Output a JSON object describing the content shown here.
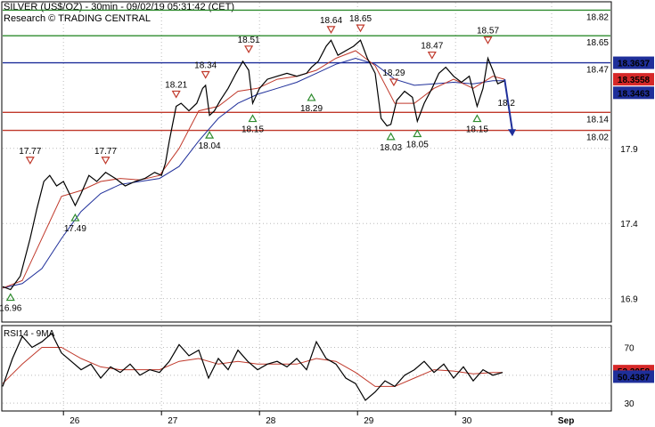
{
  "header": {
    "title": "SILVER (US$/OZ) - 30min - 09/02/19 05:31:42 (CET)",
    "subtitle": "Research © TRADING CENTRAL"
  },
  "chart_data": [
    {
      "type": "line",
      "panel": "price",
      "ylim": [
        16.75,
        18.87
      ],
      "yticks": [
        "17.9",
        "17.4",
        "16.9"
      ],
      "ytick_values": [
        17.9,
        17.4,
        16.9
      ],
      "x_tick_labels": [
        "26",
        "27",
        "28",
        "29",
        "30",
        "Sep"
      ],
      "x_tick_values": [
        0.62,
        1.62,
        2.62,
        3.62,
        4.62,
        5.6
      ],
      "xlim": [
        0,
        6.2
      ],
      "levels": [
        {
          "value": 18.82,
          "label": "18.82",
          "color": "#2e8b2e"
        },
        {
          "value": 18.65,
          "label": "18.65",
          "color": "#2e8b2e"
        },
        {
          "value": 18.47,
          "label": "18.47",
          "color": "#1f2f9a"
        },
        {
          "value": 18.14,
          "label": "18.14",
          "color": "#c0392b"
        },
        {
          "value": 18.02,
          "label": "18.02",
          "color": "#c0392b"
        }
      ],
      "price_badges": [
        {
          "label": "18.3637",
          "value": 18.47,
          "bg": "#1f2f9a",
          "fg": "#ffffff"
        },
        {
          "label": "18.3558",
          "value": 18.36,
          "bg": "#d62828",
          "fg": "#ffffff"
        },
        {
          "label": "18.3463",
          "value": 18.27,
          "bg": "#1f2f9a",
          "fg": "#ffffff"
        }
      ],
      "annotations": [
        {
          "label": "17.77",
          "x": 0.28,
          "y": 17.77,
          "kind": "high"
        },
        {
          "label": "17.77",
          "x": 1.05,
          "y": 17.77,
          "kind": "high"
        },
        {
          "label": "18.21",
          "x": 1.77,
          "y": 18.21,
          "kind": "high"
        },
        {
          "label": "18.34",
          "x": 2.07,
          "y": 18.34,
          "kind": "high"
        },
        {
          "label": "18.51",
          "x": 2.51,
          "y": 18.51,
          "kind": "high"
        },
        {
          "label": "18.64",
          "x": 3.35,
          "y": 18.64,
          "kind": "high"
        },
        {
          "label": "18.65",
          "x": 3.65,
          "y": 18.65,
          "kind": "high"
        },
        {
          "label": "18.29",
          "x": 3.99,
          "y": 18.29,
          "kind": "high"
        },
        {
          "label": "18.47",
          "x": 4.38,
          "y": 18.47,
          "kind": "high"
        },
        {
          "label": "18.57",
          "x": 4.95,
          "y": 18.57,
          "kind": "high"
        },
        {
          "label": "16.96",
          "x": 0.08,
          "y": 16.96,
          "kind": "low"
        },
        {
          "label": "17.49",
          "x": 0.74,
          "y": 17.49,
          "kind": "low"
        },
        {
          "label": "18.04",
          "x": 2.11,
          "y": 18.04,
          "kind": "low"
        },
        {
          "label": "18.15",
          "x": 2.55,
          "y": 18.15,
          "kind": "low"
        },
        {
          "label": "18.29",
          "x": 3.15,
          "y": 18.29,
          "kind": "low"
        },
        {
          "label": "18.03",
          "x": 3.96,
          "y": 18.03,
          "kind": "low"
        },
        {
          "label": "18.05",
          "x": 4.23,
          "y": 18.05,
          "kind": "low"
        },
        {
          "label": "18.15",
          "x": 4.84,
          "y": 18.15,
          "kind": "low"
        },
        {
          "label": "18.2",
          "x": 5.05,
          "y": 18.2,
          "kind": "text"
        }
      ],
      "series": [
        {
          "color": "#000000",
          "x": [
            0,
            0.08,
            0.18,
            0.28,
            0.35,
            0.42,
            0.48,
            0.55,
            0.62,
            0.68,
            0.74,
            0.8,
            0.88,
            0.96,
            1.05,
            1.15,
            1.25,
            1.35,
            1.45,
            1.55,
            1.62,
            1.66,
            1.7,
            1.73,
            1.77,
            1.82,
            1.9,
            1.98,
            2.04,
            2.07,
            2.11,
            2.16,
            2.22,
            2.3,
            2.38,
            2.45,
            2.51,
            2.55,
            2.62,
            2.7,
            2.8,
            2.9,
            3.0,
            3.1,
            3.15,
            3.22,
            3.3,
            3.35,
            3.42,
            3.5,
            3.58,
            3.65,
            3.72,
            3.8,
            3.86,
            3.92,
            3.96,
            4.02,
            4.1,
            4.18,
            4.23,
            4.3,
            4.38,
            4.45,
            4.52,
            4.6,
            4.68,
            4.76,
            4.84,
            4.9,
            4.95,
            5.0,
            5.05,
            5.12
          ],
          "values": [
            16.98,
            16.96,
            17.05,
            17.3,
            17.5,
            17.68,
            17.72,
            17.65,
            17.68,
            17.6,
            17.52,
            17.6,
            17.72,
            17.68,
            17.74,
            17.7,
            17.65,
            17.68,
            17.7,
            17.74,
            17.72,
            17.8,
            17.95,
            18.05,
            18.18,
            18.2,
            18.15,
            18.2,
            18.3,
            18.32,
            18.12,
            18.15,
            18.22,
            18.3,
            18.4,
            18.48,
            18.42,
            18.2,
            18.3,
            18.36,
            18.38,
            18.4,
            18.38,
            18.4,
            18.44,
            18.48,
            18.58,
            18.62,
            18.52,
            18.55,
            18.58,
            18.62,
            18.5,
            18.4,
            18.1,
            18.05,
            18.06,
            18.22,
            18.28,
            18.24,
            18.08,
            18.2,
            18.3,
            18.4,
            18.44,
            18.38,
            18.34,
            18.38,
            18.18,
            18.3,
            18.5,
            18.42,
            18.33,
            18.35
          ]
        },
        {
          "color": "#c0392b",
          "x": [
            0,
            0.2,
            0.4,
            0.6,
            0.8,
            1.0,
            1.2,
            1.4,
            1.6,
            1.8,
            2.0,
            2.2,
            2.4,
            2.6,
            2.8,
            3.0,
            3.2,
            3.4,
            3.6,
            3.8,
            4.0,
            4.2,
            4.4,
            4.6,
            4.8,
            5.0,
            5.12
          ],
          "values": [
            16.97,
            17.02,
            17.3,
            17.58,
            17.62,
            17.68,
            17.7,
            17.69,
            17.72,
            17.9,
            18.15,
            18.18,
            18.28,
            18.3,
            18.36,
            18.38,
            18.42,
            18.5,
            18.55,
            18.45,
            18.2,
            18.2,
            18.3,
            18.36,
            18.3,
            18.38,
            18.36
          ]
        },
        {
          "color": "#1f2f9a",
          "x": [
            0,
            0.2,
            0.4,
            0.6,
            0.8,
            1.0,
            1.2,
            1.4,
            1.6,
            1.8,
            2.0,
            2.2,
            2.4,
            2.6,
            2.8,
            3.0,
            3.2,
            3.4,
            3.6,
            3.8,
            4.0,
            4.2,
            4.4,
            4.6,
            4.8,
            5.0,
            5.12
          ],
          "values": [
            16.97,
            17.0,
            17.1,
            17.3,
            17.48,
            17.6,
            17.66,
            17.68,
            17.7,
            17.78,
            17.95,
            18.1,
            18.2,
            18.26,
            18.3,
            18.34,
            18.4,
            18.46,
            18.5,
            18.46,
            18.36,
            18.32,
            18.33,
            18.34,
            18.33,
            18.35,
            18.35
          ]
        }
      ],
      "forecast_arrow": {
        "from": [
          5.12,
          18.36
        ],
        "to": [
          5.2,
          17.98
        ],
        "color": "#1f2f9a"
      }
    },
    {
      "type": "line",
      "panel": "oscillator",
      "title": "RSI14 - 9MA",
      "ylim": [
        25,
        85
      ],
      "yticks": [
        "70",
        "50",
        "30"
      ],
      "ytick_values": [
        70,
        50,
        30
      ],
      "price_badges": [
        {
          "label": "52.3058",
          "value": 53,
          "bg": "#d62828",
          "fg": "#ffffff"
        },
        {
          "label": "50.4387",
          "value": 49,
          "bg": "#1f2f9a",
          "fg": "#ffffff"
        }
      ],
      "series": [
        {
          "color": "#000000",
          "x": [
            0,
            0.1,
            0.2,
            0.3,
            0.4,
            0.5,
            0.6,
            0.7,
            0.8,
            0.9,
            1.0,
            1.1,
            1.2,
            1.3,
            1.4,
            1.5,
            1.6,
            1.7,
            1.8,
            1.9,
            2.0,
            2.1,
            2.2,
            2.3,
            2.4,
            2.5,
            2.6,
            2.7,
            2.8,
            2.9,
            3.0,
            3.1,
            3.2,
            3.3,
            3.4,
            3.5,
            3.6,
            3.7,
            3.8,
            3.9,
            4.0,
            4.1,
            4.2,
            4.3,
            4.4,
            4.5,
            4.6,
            4.7,
            4.8,
            4.9,
            5.0,
            5.1
          ],
          "values": [
            42,
            62,
            78,
            70,
            74,
            80,
            66,
            60,
            54,
            58,
            48,
            56,
            52,
            58,
            50,
            54,
            52,
            60,
            72,
            64,
            68,
            48,
            62,
            54,
            68,
            60,
            54,
            58,
            60,
            56,
            62,
            54,
            74,
            62,
            58,
            48,
            44,
            32,
            38,
            46,
            42,
            50,
            54,
            60,
            52,
            58,
            48,
            56,
            46,
            54,
            50,
            52
          ]
        },
        {
          "color": "#c0392b",
          "x": [
            0,
            0.2,
            0.4,
            0.6,
            0.8,
            1.0,
            1.2,
            1.4,
            1.6,
            1.8,
            2.0,
            2.2,
            2.4,
            2.6,
            2.8,
            3.0,
            3.2,
            3.4,
            3.6,
            3.8,
            4.0,
            4.2,
            4.4,
            4.6,
            4.8,
            5.0,
            5.1
          ],
          "values": [
            44,
            58,
            70,
            70,
            62,
            56,
            54,
            54,
            54,
            60,
            62,
            58,
            60,
            58,
            58,
            58,
            62,
            60,
            52,
            42,
            42,
            48,
            54,
            53,
            51,
            52,
            52
          ]
        }
      ]
    }
  ]
}
